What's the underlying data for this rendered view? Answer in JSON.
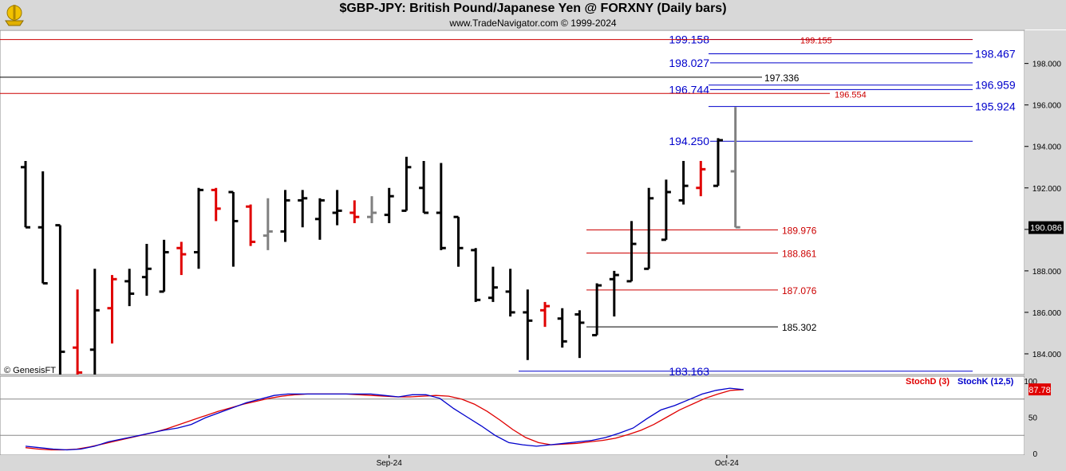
{
  "header": {
    "title": "$GBP-JPY:  British Pound/Japanese Yen @ FORXNY  (Daily bars)",
    "subtitle": "www.TradeNavigator.com © 1999-2024",
    "copyright": "© GenesisFT"
  },
  "colors": {
    "up": "#000000",
    "down": "#e00000",
    "neutral": "#808080",
    "level_blue": "#0000cc",
    "level_red": "#cc0000",
    "level_black": "#000000",
    "stoch_d": "#e00000",
    "stoch_k": "#0000cc"
  },
  "chart_data": [
    {
      "type": "ohlc",
      "ylim": [
        183.0,
        199.6
      ],
      "y_ticks": [
        "184.000",
        "186.000",
        "188.000",
        "190.000",
        "192.000",
        "194.000",
        "196.000",
        "198.000"
      ],
      "last_price": "190.086",
      "x_ticks": [
        {
          "label": "Sep-24",
          "bar": 21
        },
        {
          "label": "Oct-24",
          "bar": 40.5
        }
      ],
      "bars": [
        {
          "o": 193.0,
          "h": 193.3,
          "l": 190.1,
          "c": 190.1,
          "col": "up"
        },
        {
          "o": 190.1,
          "h": 192.8,
          "l": 187.4,
          "c": 187.4,
          "col": "up"
        },
        {
          "o": 190.2,
          "h": 190.2,
          "l": 183.0,
          "c": 184.1,
          "col": "up"
        },
        {
          "o": 184.3,
          "h": 187.1,
          "l": 183.0,
          "c": 183.1,
          "col": "down"
        },
        {
          "o": 184.2,
          "h": 188.1,
          "l": 183.0,
          "c": 186.1,
          "col": "up"
        },
        {
          "o": 186.2,
          "h": 187.8,
          "l": 184.5,
          "c": 187.6,
          "col": "down"
        },
        {
          "o": 187.5,
          "h": 188.1,
          "l": 186.3,
          "c": 186.9,
          "col": "up"
        },
        {
          "o": 187.7,
          "h": 189.3,
          "l": 186.8,
          "c": 188.1,
          "col": "up"
        },
        {
          "o": 187.0,
          "h": 189.5,
          "l": 187.0,
          "c": 188.9,
          "col": "up"
        },
        {
          "o": 189.1,
          "h": 189.4,
          "l": 187.8,
          "c": 188.8,
          "col": "down"
        },
        {
          "o": 188.9,
          "h": 192.0,
          "l": 188.1,
          "c": 191.9,
          "col": "up"
        },
        {
          "o": 191.9,
          "h": 192.0,
          "l": 190.4,
          "c": 191.0,
          "col": "down"
        },
        {
          "o": 191.8,
          "h": 191.8,
          "l": 188.2,
          "c": 190.4,
          "col": "up"
        },
        {
          "o": 191.1,
          "h": 191.2,
          "l": 189.2,
          "c": 189.4,
          "col": "down"
        },
        {
          "o": 189.7,
          "h": 191.5,
          "l": 189.0,
          "c": 189.9,
          "col": "neutral"
        },
        {
          "o": 189.9,
          "h": 191.9,
          "l": 189.4,
          "c": 191.4,
          "col": "up"
        },
        {
          "o": 191.4,
          "h": 191.9,
          "l": 190.1,
          "c": 191.5,
          "col": "up"
        },
        {
          "o": 190.5,
          "h": 191.5,
          "l": 189.5,
          "c": 191.4,
          "col": "up"
        },
        {
          "o": 190.8,
          "h": 191.9,
          "l": 190.2,
          "c": 190.9,
          "col": "up"
        },
        {
          "o": 190.8,
          "h": 191.4,
          "l": 190.3,
          "c": 190.6,
          "col": "down"
        },
        {
          "o": 190.6,
          "h": 191.6,
          "l": 190.3,
          "c": 190.8,
          "col": "neutral"
        },
        {
          "o": 190.7,
          "h": 192.0,
          "l": 190.3,
          "c": 191.6,
          "col": "up"
        },
        {
          "o": 190.9,
          "h": 193.5,
          "l": 190.9,
          "c": 193.0,
          "col": "up"
        },
        {
          "o": 192.0,
          "h": 193.3,
          "l": 190.8,
          "c": 190.8,
          "col": "up"
        },
        {
          "o": 190.8,
          "h": 193.2,
          "l": 189.0,
          "c": 189.1,
          "col": "up"
        },
        {
          "o": 190.6,
          "h": 190.6,
          "l": 188.2,
          "c": 189.1,
          "col": "up"
        },
        {
          "o": 189.0,
          "h": 189.1,
          "l": 186.5,
          "c": 186.6,
          "col": "up"
        },
        {
          "o": 186.7,
          "h": 188.2,
          "l": 186.5,
          "c": 187.2,
          "col": "up"
        },
        {
          "o": 187.0,
          "h": 188.1,
          "l": 185.8,
          "c": 186.0,
          "col": "up"
        },
        {
          "o": 186.0,
          "h": 187.1,
          "l": 183.7,
          "c": 185.6,
          "col": "up"
        },
        {
          "o": 186.1,
          "h": 186.5,
          "l": 185.3,
          "c": 186.3,
          "col": "down"
        },
        {
          "o": 185.7,
          "h": 186.2,
          "l": 184.3,
          "c": 184.6,
          "col": "up"
        },
        {
          "o": 185.9,
          "h": 186.1,
          "l": 183.8,
          "c": 185.5,
          "col": "up"
        },
        {
          "o": 184.9,
          "h": 187.4,
          "l": 184.9,
          "c": 187.3,
          "col": "up"
        },
        {
          "o": 187.6,
          "h": 188.0,
          "l": 185.8,
          "c": 187.8,
          "col": "up"
        },
        {
          "o": 187.5,
          "h": 190.4,
          "l": 187.5,
          "c": 189.3,
          "col": "up"
        },
        {
          "o": 188.1,
          "h": 192.0,
          "l": 188.1,
          "c": 191.5,
          "col": "up"
        },
        {
          "o": 189.5,
          "h": 192.4,
          "l": 189.5,
          "c": 191.8,
          "col": "up"
        },
        {
          "o": 191.4,
          "h": 193.3,
          "l": 191.2,
          "c": 192.1,
          "col": "up"
        },
        {
          "o": 192.0,
          "h": 193.3,
          "l": 191.6,
          "c": 192.9,
          "col": "down"
        },
        {
          "o": 192.1,
          "h": 194.4,
          "l": 192.1,
          "c": 194.3,
          "col": "up"
        },
        {
          "o": 192.8,
          "h": 195.9,
          "l": 190.1,
          "c": 190.1,
          "col": "neutral"
        }
      ],
      "levels": [
        {
          "price": 199.158,
          "label": "199.158",
          "color": "blue",
          "x0": "left",
          "x1": "axis",
          "label_side": "center"
        },
        {
          "price": 199.155,
          "label": "199.155",
          "color": "red",
          "x0": 0,
          "x1": "axis",
          "label_side": "center2"
        },
        {
          "price": 198.467,
          "label": "198.467",
          "color": "blue",
          "x0": "mid",
          "x1": "axis",
          "label_side": "right"
        },
        {
          "price": 198.027,
          "label": "198.027",
          "color": "blue",
          "x0": "left",
          "x1": "axis",
          "label_side": "center"
        },
        {
          "price": 197.336,
          "label": "197.336",
          "color": "black",
          "x0": 0,
          "x1": "label",
          "label_side": "after"
        },
        {
          "price": 196.959,
          "label": "196.959",
          "color": "blue",
          "x0": "mid",
          "x1": "axis",
          "label_side": "right"
        },
        {
          "price": 196.744,
          "label": "196.744",
          "color": "blue",
          "x0": "left",
          "x1": "axis",
          "label_side": "center"
        },
        {
          "price": 196.554,
          "label": "196.554",
          "color": "red",
          "x0": 0,
          "x1": "label",
          "label_side": "after"
        },
        {
          "price": 195.924,
          "label": "195.924",
          "color": "blue",
          "x0": "mid",
          "x1": "axis",
          "label_side": "right"
        },
        {
          "price": 194.25,
          "label": "194.250",
          "color": "blue",
          "x0": "left",
          "x1": "axis",
          "label_side": "center"
        },
        {
          "price": 189.976,
          "label": "189.976",
          "color": "red",
          "x0": "low",
          "x1": "label",
          "label_side": "after"
        },
        {
          "price": 188.861,
          "label": "188.861",
          "color": "red",
          "x0": "low",
          "x1": "label",
          "label_side": "after"
        },
        {
          "price": 187.076,
          "label": "187.076",
          "color": "red",
          "x0": "low",
          "x1": "label",
          "label_side": "after"
        },
        {
          "price": 185.302,
          "label": "185.302",
          "color": "black",
          "x0": "low",
          "x1": "label",
          "label_side": "after"
        },
        {
          "price": 183.163,
          "label": "183.163",
          "color": "blue",
          "x0": "left",
          "x1": "axis",
          "label_side": "center"
        }
      ]
    },
    {
      "type": "line",
      "ylim": [
        0,
        100
      ],
      "y_ticks": [
        "0",
        "50",
        "100"
      ],
      "reference_lines": [
        25,
        75
      ],
      "last_value": "87.78",
      "series": [
        {
          "name": "StochD (3)",
          "color": "red",
          "values": [
            8,
            6,
            5,
            5,
            6,
            9,
            13,
            17,
            21,
            25,
            29,
            34,
            40,
            46,
            52,
            58,
            63,
            68,
            72,
            76,
            79,
            81,
            82,
            82,
            82,
            82,
            81,
            80,
            79,
            78,
            78,
            79,
            80,
            79,
            75,
            68,
            58,
            46,
            33,
            22,
            15,
            12,
            13,
            14,
            16,
            18,
            21,
            26,
            32,
            40,
            50,
            60,
            68,
            76,
            82,
            87,
            88
          ]
        },
        {
          "name": "StochK (12,5)",
          "color": "blue",
          "values": [
            10,
            8,
            6,
            5,
            6,
            10,
            16,
            20,
            24,
            28,
            32,
            35,
            40,
            49,
            56,
            63,
            70,
            75,
            80,
            82,
            82,
            82,
            82,
            82,
            82,
            82,
            80,
            78,
            81,
            81,
            76,
            62,
            50,
            38,
            25,
            15,
            12,
            10,
            12,
            14,
            16,
            18,
            22,
            28,
            35,
            48,
            60,
            66,
            74,
            82,
            87,
            90,
            88
          ]
        }
      ]
    }
  ]
}
